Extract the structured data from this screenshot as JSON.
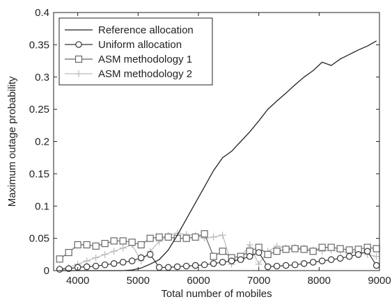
{
  "chart_data": {
    "type": "line",
    "title": "",
    "xlabel": "Total number of mobiles",
    "ylabel": "Maximum outage probability",
    "xlim": [
      3600,
      9000
    ],
    "ylim": [
      0,
      0.4
    ],
    "xticks": [
      4000,
      5000,
      6000,
      7000,
      8000,
      9000
    ],
    "xtick_labels": [
      "4000",
      "5000",
      "6000",
      "7000",
      "8000",
      "9000"
    ],
    "yticks": [
      0,
      0.05,
      0.1,
      0.15,
      0.2,
      0.25,
      0.3,
      0.35,
      0.4
    ],
    "ytick_labels": [
      "0",
      "0.05",
      "0.1",
      "0.15",
      "0.2",
      "0.25",
      "0.3",
      "0.35",
      "0.4"
    ],
    "grid": false,
    "legend_position": "top-left",
    "series": [
      {
        "name": "Reference allocation",
        "color": "#222222",
        "marker": "none",
        "x": [
          3700,
          3850,
          4000,
          4150,
          4300,
          4450,
          4600,
          4750,
          4900,
          5050,
          5200,
          5350,
          5500,
          5650,
          5800,
          5950,
          6100,
          6250,
          6400,
          6550,
          6700,
          6850,
          7000,
          7150,
          7300,
          7450,
          7600,
          7750,
          7900,
          8050,
          8200,
          8350,
          8500,
          8650,
          8800,
          8950
        ],
        "values": [
          0.0,
          0.0,
          0.0,
          0.0,
          0.0,
          0.0,
          0.0,
          0.0,
          0.001,
          0.004,
          0.01,
          0.017,
          0.032,
          0.055,
          0.08,
          0.105,
          0.13,
          0.155,
          0.175,
          0.185,
          0.2,
          0.215,
          0.232,
          0.25,
          0.263,
          0.275,
          0.288,
          0.3,
          0.31,
          0.323,
          0.318,
          0.328,
          0.335,
          0.342,
          0.348,
          0.356
        ]
      },
      {
        "name": "Uniform allocation",
        "color": "#333333",
        "marker": "circle",
        "x": [
          3700,
          3850,
          4000,
          4150,
          4300,
          4450,
          4600,
          4750,
          4900,
          5050,
          5200,
          5350,
          5500,
          5650,
          5800,
          5950,
          6100,
          6250,
          6400,
          6550,
          6700,
          6850,
          7000,
          7150,
          7300,
          7450,
          7600,
          7750,
          7900,
          8050,
          8200,
          8350,
          8500,
          8650,
          8800,
          8950
        ],
        "values": [
          0.002,
          0.003,
          0.005,
          0.006,
          0.007,
          0.009,
          0.011,
          0.013,
          0.015,
          0.02,
          0.025,
          0.005,
          0.005,
          0.006,
          0.007,
          0.008,
          0.009,
          0.011,
          0.013,
          0.015,
          0.017,
          0.022,
          0.028,
          0.006,
          0.007,
          0.008,
          0.009,
          0.011,
          0.013,
          0.015,
          0.017,
          0.019,
          0.022,
          0.025,
          0.03,
          0.008
        ]
      },
      {
        "name": "ASM methodology 1",
        "color": "#666666",
        "marker": "square",
        "x": [
          3700,
          3850,
          4000,
          4150,
          4300,
          4450,
          4600,
          4750,
          4900,
          5050,
          5200,
          5350,
          5500,
          5650,
          5800,
          5950,
          6100,
          6250,
          6400,
          6550,
          6700,
          6850,
          7000,
          7150,
          7300,
          7450,
          7600,
          7750,
          7900,
          8050,
          8200,
          8350,
          8500,
          8650,
          8800,
          8950
        ],
        "values": [
          0.018,
          0.028,
          0.04,
          0.04,
          0.038,
          0.042,
          0.046,
          0.046,
          0.044,
          0.04,
          0.05,
          0.052,
          0.052,
          0.05,
          0.05,
          0.052,
          0.057,
          0.022,
          0.03,
          0.02,
          0.022,
          0.03,
          0.036,
          0.025,
          0.03,
          0.033,
          0.034,
          0.033,
          0.03,
          0.036,
          0.036,
          0.034,
          0.032,
          0.033,
          0.036,
          0.034
        ]
      },
      {
        "name": "ASM methodology 2",
        "color": "#bbbbbb",
        "marker": "plus",
        "x": [
          3700,
          3850,
          4000,
          4150,
          4300,
          4450,
          4600,
          4750,
          4900,
          5050,
          5200,
          5350,
          5500,
          5650,
          5800,
          5950,
          6100,
          6250,
          6400,
          6550,
          6700,
          6850,
          7000,
          7150,
          7300,
          7450,
          7600,
          7750,
          7900,
          8050,
          8200,
          8350,
          8500,
          8650,
          8800,
          8950
        ],
        "values": [
          0.003,
          0.005,
          0.01,
          0.015,
          0.02,
          0.025,
          0.03,
          0.035,
          0.04,
          0.015,
          0.03,
          0.045,
          0.055,
          0.058,
          0.056,
          0.055,
          0.05,
          0.052,
          0.055,
          0.01,
          0.02,
          0.04,
          0.01,
          0.03,
          0.038,
          0.035,
          0.036,
          0.035,
          0.032,
          0.03,
          0.032,
          0.03,
          0.028,
          0.03,
          0.025,
          0.022
        ]
      }
    ]
  }
}
